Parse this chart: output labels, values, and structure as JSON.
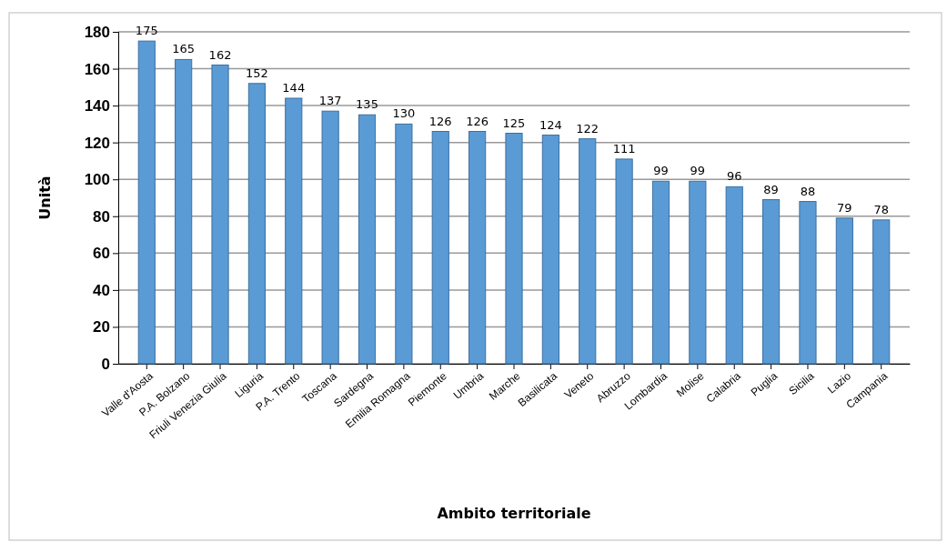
{
  "chart_data": {
    "type": "bar",
    "xlabel": "Ambito territoriale",
    "ylabel": "Unità",
    "categories": [
      "Valle d'Aosta",
      "P.A. Bolzano",
      "Friuli Venezia Giulia",
      "Liguria",
      "P.A. Trento",
      "Toscana",
      "Sardegna",
      "Emilia Romagna",
      "Piemonte",
      "Umbria",
      "Marche",
      "Basilicata",
      "Veneto",
      "Abruzzo",
      "Lombardia",
      "Molise",
      "Calabria",
      "Puglia",
      "Sicilia",
      "Lazio",
      "Campania"
    ],
    "values": [
      175,
      165,
      162,
      152,
      144,
      137,
      135,
      130,
      126,
      126,
      125,
      124,
      122,
      111,
      99,
      99,
      96,
      89,
      88,
      79,
      78
    ],
    "color": "#5b9bd5",
    "ylim": [
      0,
      180
    ],
    "yticks": [
      0,
      20,
      40,
      60,
      80,
      100,
      120,
      140,
      160,
      180
    ],
    "grid": "y",
    "data_labels": true
  }
}
